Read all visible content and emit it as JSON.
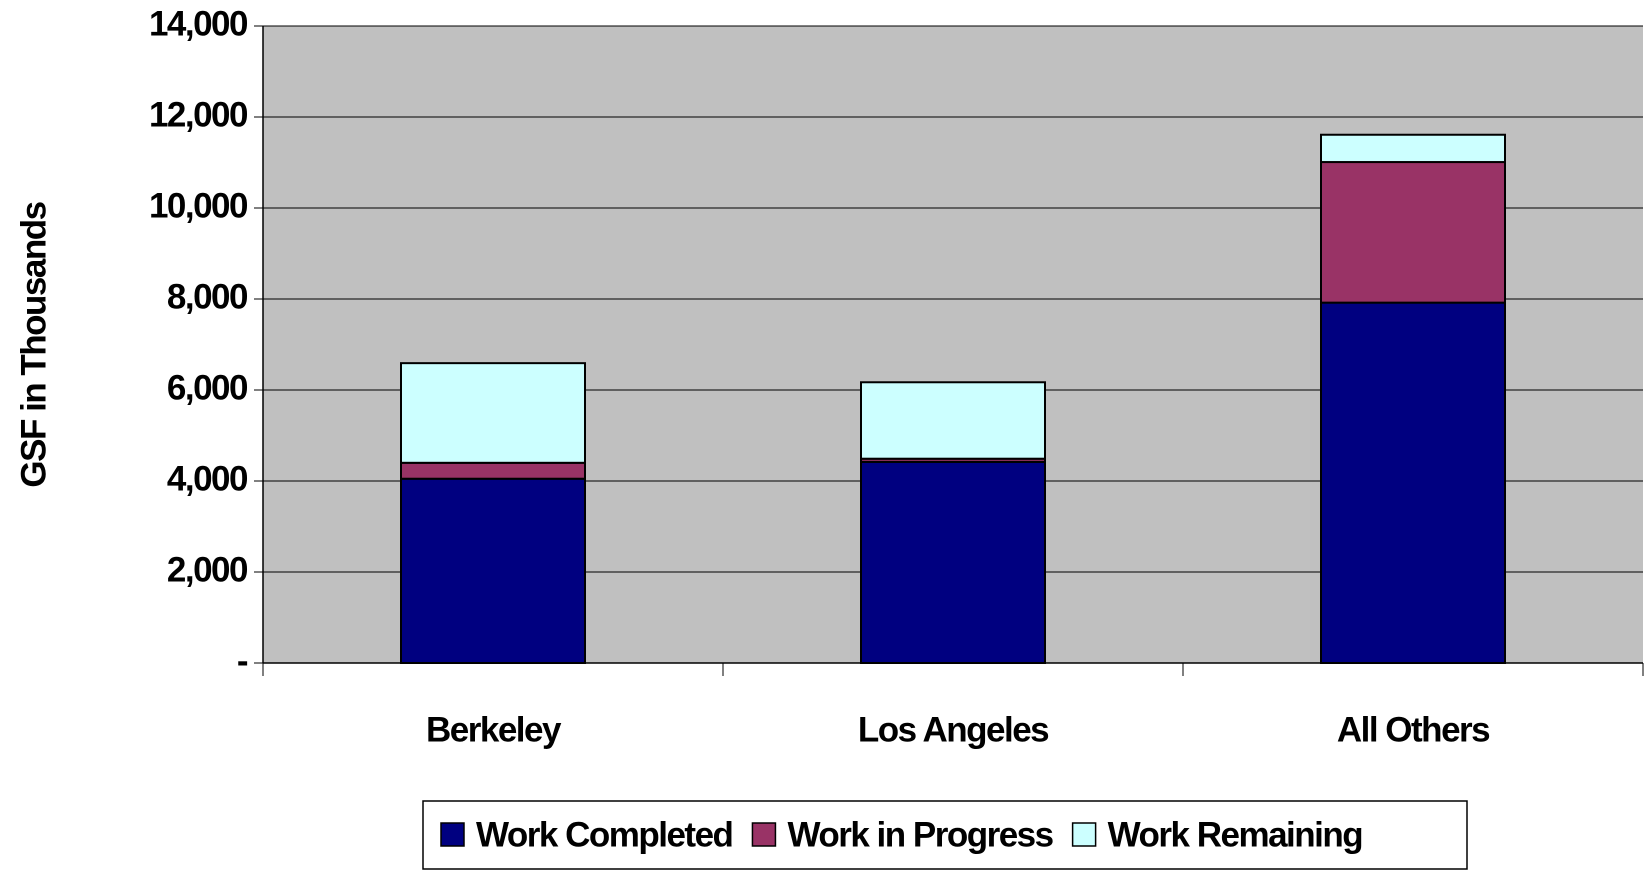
{
  "chart_data": {
    "type": "stacked_bar",
    "ylabel": "GSF in Thousands",
    "categories": [
      "Berkeley",
      "Los Angeles",
      "All Others"
    ],
    "series": [
      {
        "name": "Work Completed",
        "color": "#000080",
        "values": [
          4050,
          4420,
          7920
        ]
      },
      {
        "name": "Work in Progress",
        "color": "#993366",
        "values": [
          350,
          70,
          3090
        ]
      },
      {
        "name": "Work Remaining",
        "color": "#ccffff",
        "values": [
          2190,
          1680,
          600
        ]
      }
    ],
    "ylim": [
      0,
      14000
    ],
    "yticks": [
      {
        "value": 0,
        "label": "-"
      },
      {
        "value": 2000,
        "label": "2,000"
      },
      {
        "value": 4000,
        "label": "4,000"
      },
      {
        "value": 6000,
        "label": "6,000"
      },
      {
        "value": 8000,
        "label": "8,000"
      },
      {
        "value": 10000,
        "label": "10,000"
      },
      {
        "value": 12000,
        "label": "12,000"
      },
      {
        "value": 14000,
        "label": "14,000"
      }
    ],
    "grid": true,
    "legend": "bottom",
    "plot_background": "#c0c0c0"
  }
}
